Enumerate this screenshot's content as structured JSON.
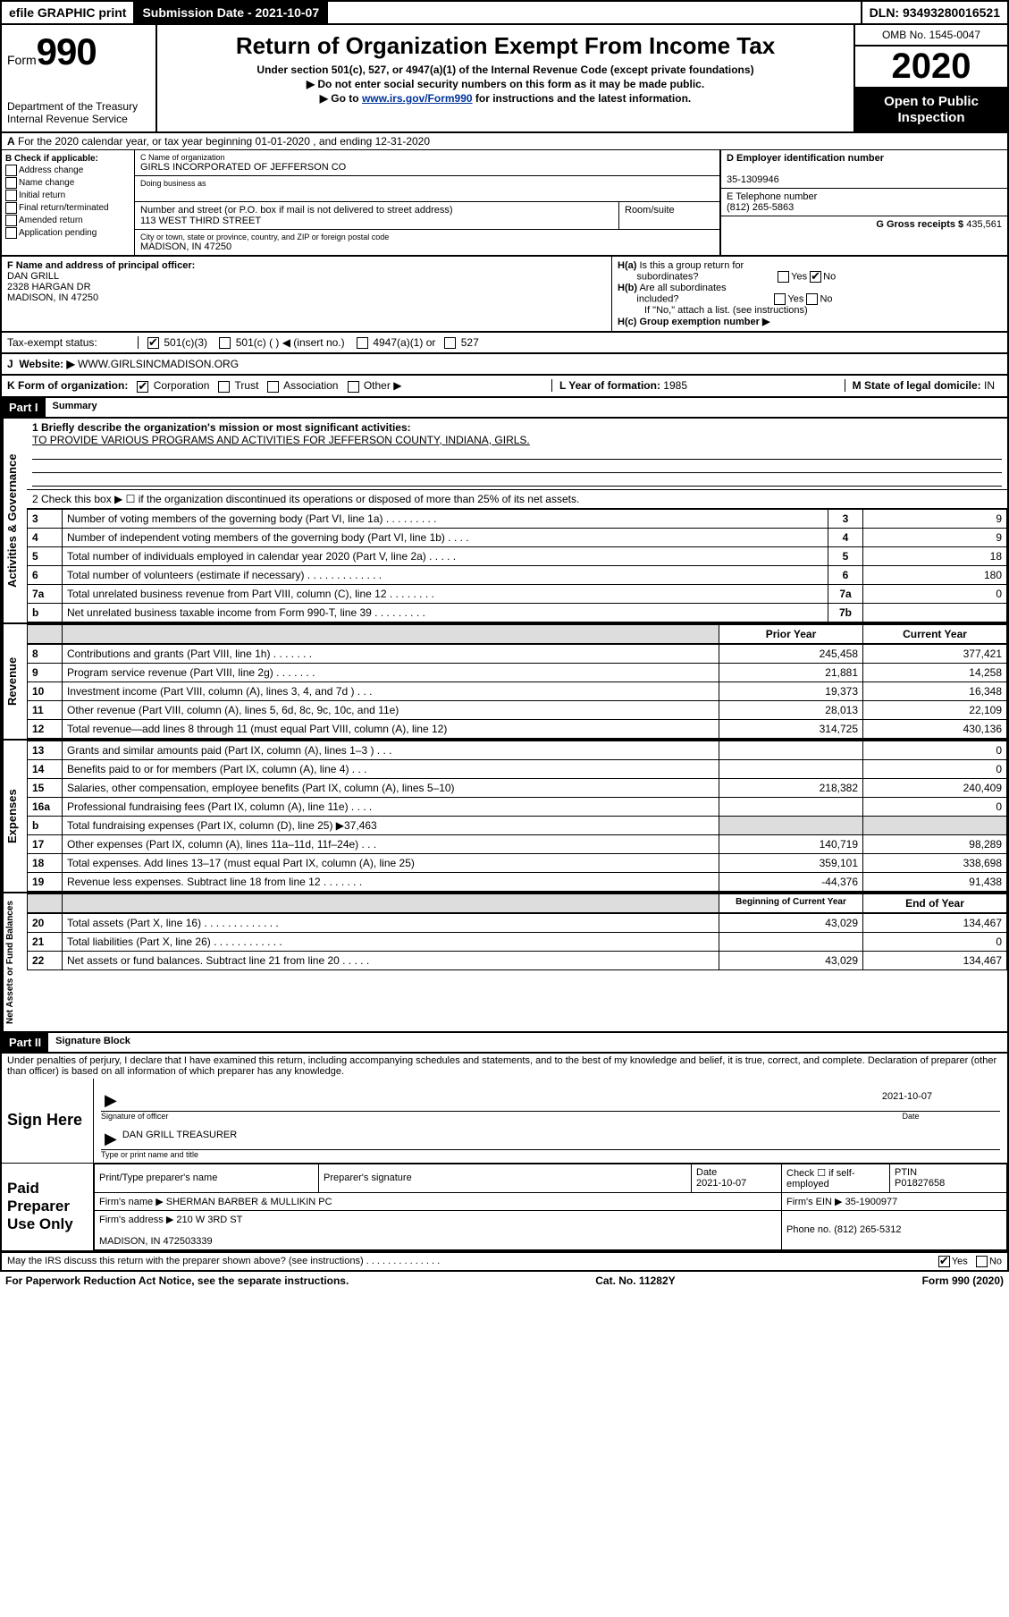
{
  "topbar": {
    "efile": "efile GRAPHIC print",
    "submission_label": "Submission Date - 2021-10-07",
    "dln": "DLN: 93493280016521"
  },
  "header": {
    "form_label": "Form",
    "form_number": "990",
    "dept": "Department of the Treasury",
    "irs": "Internal Revenue Service",
    "title": "Return of Organization Exempt From Income Tax",
    "subtitle": "Under section 501(c), 527, or 4947(a)(1) of the Internal Revenue Code (except private foundations)",
    "note1": "Do not enter social security numbers on this form as it may be made public.",
    "note2_pre": "Go to ",
    "note2_link": "www.irs.gov/Form990",
    "note2_post": " for instructions and the latest information.",
    "omb": "OMB No. 1545-0047",
    "year": "2020",
    "inspection": "Open to Public Inspection"
  },
  "line_a": "For the 2020 calendar year, or tax year beginning 01-01-2020   , and ending 12-31-2020",
  "box_b": {
    "title": "B Check if applicable:",
    "opts": [
      "Address change",
      "Name change",
      "Initial return",
      "Final return/terminated",
      "Amended return",
      "Application pending"
    ]
  },
  "box_c": {
    "lbl": "C Name of organization",
    "name": "GIRLS INCORPORATED OF JEFFERSON CO",
    "dba_lbl": "Doing business as",
    "addr_lbl": "Number and street (or P.O. box if mail is not delivered to street address)",
    "addr": "113 WEST THIRD STREET",
    "room_lbl": "Room/suite",
    "city_lbl": "City or town, state or province, country, and ZIP or foreign postal code",
    "city": "MADISON, IN  47250"
  },
  "box_d": {
    "lbl": "D Employer identification number",
    "val": "35-1309946"
  },
  "box_e": {
    "lbl": "E Telephone number",
    "val": "(812) 265-5863"
  },
  "box_g": {
    "lbl": "G Gross receipts $",
    "val": "435,561"
  },
  "box_f": {
    "lbl": "F Name and address of principal officer:",
    "name": "DAN GRILL",
    "addr1": "2328 HARGAN DR",
    "addr2": "MADISON, IN  47250"
  },
  "box_h": {
    "a_lbl": "H(a)  Is this a group return for subordinates?",
    "b_lbl": "H(b)  Are all subordinates included?",
    "note": "If \"No,\" attach a list. (see instructions)",
    "c_lbl": "H(c)  Group exemption number ▶"
  },
  "tax_status": {
    "lbl": "Tax-exempt status:",
    "opt1": "501(c)(3)",
    "opt2": "501(c) (   ) ◀ (insert no.)",
    "opt3": "4947(a)(1) or",
    "opt4": "527"
  },
  "website": {
    "lbl": "Website: ▶",
    "val": "WWW.GIRLSINCMADISON.ORG"
  },
  "line_k": {
    "lbl": "K Form of organization:",
    "opts": [
      "Corporation",
      "Trust",
      "Association",
      "Other ▶"
    ],
    "l_lbl": "L Year of formation:",
    "l_val": "1985",
    "m_lbl": "M State of legal domicile:",
    "m_val": "IN"
  },
  "part1": {
    "header": "Part I",
    "title": "Summary",
    "q1_lbl": "1  Briefly describe the organization's mission or most significant activities:",
    "q1_val": "TO PROVIDE VARIOUS PROGRAMS AND ACTIVITIES FOR JEFFERSON COUNTY, INDIANA, GIRLS.",
    "q2": "2   Check this box ▶ ☐ if the organization discontinued its operations or disposed of more than 25% of its net assets.",
    "rows_gov": [
      {
        "n": "3",
        "d": "Number of voting members of the governing body (Part VI, line 1a)  .   .   .   .   .   .   .   .   .",
        "b": "3",
        "v": "9"
      },
      {
        "n": "4",
        "d": "Number of independent voting members of the governing body (Part VI, line 1b)   .   .   .   .",
        "b": "4",
        "v": "9"
      },
      {
        "n": "5",
        "d": "Total number of individuals employed in calendar year 2020 (Part V, line 2a)   .   .   .   .   .",
        "b": "5",
        "v": "18"
      },
      {
        "n": "6",
        "d": "Total number of volunteers (estimate if necessary)   .   .   .   .   .   .   .   .   .   .   .   .   .",
        "b": "6",
        "v": "180"
      },
      {
        "n": "7a",
        "d": "Total unrelated business revenue from Part VIII, column (C), line 12   .   .   .   .   .   .   .   .",
        "b": "7a",
        "v": "0"
      },
      {
        "n": "b",
        "d": "Net unrelated business taxable income from Form 990-T, line 39   .   .   .   .   .   .   .   .   .",
        "b": "7b",
        "v": ""
      }
    ],
    "col_headers": {
      "prior": "Prior Year",
      "current": "Current Year"
    },
    "rows_rev": [
      {
        "n": "8",
        "d": "Contributions and grants (Part VIII, line 1h)   .   .   .   .   .   .   .",
        "p": "245,458",
        "c": "377,421"
      },
      {
        "n": "9",
        "d": "Program service revenue (Part VIII, line 2g)   .   .   .   .   .   .   .",
        "p": "21,881",
        "c": "14,258"
      },
      {
        "n": "10",
        "d": "Investment income (Part VIII, column (A), lines 3, 4, and 7d )   .   .   .",
        "p": "19,373",
        "c": "16,348"
      },
      {
        "n": "11",
        "d": "Other revenue (Part VIII, column (A), lines 5, 6d, 8c, 9c, 10c, and 11e)",
        "p": "28,013",
        "c": "22,109"
      },
      {
        "n": "12",
        "d": "Total revenue—add lines 8 through 11 (must equal Part VIII, column (A), line 12)",
        "p": "314,725",
        "c": "430,136"
      }
    ],
    "rows_exp": [
      {
        "n": "13",
        "d": "Grants and similar amounts paid (Part IX, column (A), lines 1–3 )   .   .   .",
        "p": "",
        "c": "0"
      },
      {
        "n": "14",
        "d": "Benefits paid to or for members (Part IX, column (A), line 4)   .   .   .",
        "p": "",
        "c": "0"
      },
      {
        "n": "15",
        "d": "Salaries, other compensation, employee benefits (Part IX, column (A), lines 5–10)",
        "p": "218,382",
        "c": "240,409"
      },
      {
        "n": "16a",
        "d": "Professional fundraising fees (Part IX, column (A), line 11e)   .   .   .   .",
        "p": "",
        "c": "0"
      },
      {
        "n": "b",
        "d": "Total fundraising expenses (Part IX, column (D), line 25) ▶37,463",
        "p": "grey",
        "c": "grey"
      },
      {
        "n": "17",
        "d": "Other expenses (Part IX, column (A), lines 11a–11d, 11f–24e)   .   .   .",
        "p": "140,719",
        "c": "98,289"
      },
      {
        "n": "18",
        "d": "Total expenses. Add lines 13–17 (must equal Part IX, column (A), line 25)",
        "p": "359,101",
        "c": "338,698"
      },
      {
        "n": "19",
        "d": "Revenue less expenses. Subtract line 18 from line 12   .   .   .   .   .   .   .",
        "p": "-44,376",
        "c": "91,438"
      }
    ],
    "col_headers2": {
      "begin": "Beginning of Current Year",
      "end": "End of Year"
    },
    "rows_net": [
      {
        "n": "20",
        "d": "Total assets (Part X, line 16)   .   .   .   .   .   .   .   .   .   .   .   .   .",
        "p": "43,029",
        "c": "134,467"
      },
      {
        "n": "21",
        "d": "Total liabilities (Part X, line 26)   .   .   .   .   .   .   .   .   .   .   .   .",
        "p": "",
        "c": "0"
      },
      {
        "n": "22",
        "d": "Net assets or fund balances. Subtract line 21 from line 20   .   .   .   .   .",
        "p": "43,029",
        "c": "134,467"
      }
    ],
    "vtext_gov": "Activities & Governance",
    "vtext_rev": "Revenue",
    "vtext_exp": "Expenses",
    "vtext_net": "Net Assets or Fund Balances"
  },
  "part2": {
    "header": "Part II",
    "title": "Signature Block",
    "decl": "Under penalties of perjury, I declare that I have examined this return, including accompanying schedules and statements, and to the best of my knowledge and belief, it is true, correct, and complete. Declaration of preparer (other than officer) is based on all information of which preparer has any knowledge."
  },
  "sign": {
    "here": "Sign Here",
    "sig_lbl": "Signature of officer",
    "date_lbl": "Date",
    "date": "2021-10-07",
    "name": "DAN GRILL  TREASURER",
    "name_lbl": "Type or print name and title"
  },
  "preparer": {
    "label": "Paid Preparer Use Only",
    "col1": "Print/Type preparer's name",
    "col2": "Preparer's signature",
    "col3": "Date",
    "date": "2021-10-07",
    "col4": "Check ☐ if self-employed",
    "col5_lbl": "PTIN",
    "ptin": "P01827658",
    "firm_name_lbl": "Firm's name    ▶",
    "firm_name": "SHERMAN BARBER & MULLIKIN PC",
    "firm_ein_lbl": "Firm's EIN ▶",
    "firm_ein": "35-1900977",
    "firm_addr_lbl": "Firm's address ▶",
    "firm_addr": "210 W 3RD ST",
    "firm_city": "MADISON, IN  472503339",
    "phone_lbl": "Phone no.",
    "phone": "(812) 265-5312"
  },
  "discuss": "May the IRS discuss this return with the preparer shown above? (see instructions)   .   .   .   .   .   .   .   .   .   .   .   .   .   .",
  "footer": {
    "pra": "For Paperwork Reduction Act Notice, see the separate instructions.",
    "cat": "Cat. No. 11282Y",
    "form": "Form 990 (2020)"
  }
}
